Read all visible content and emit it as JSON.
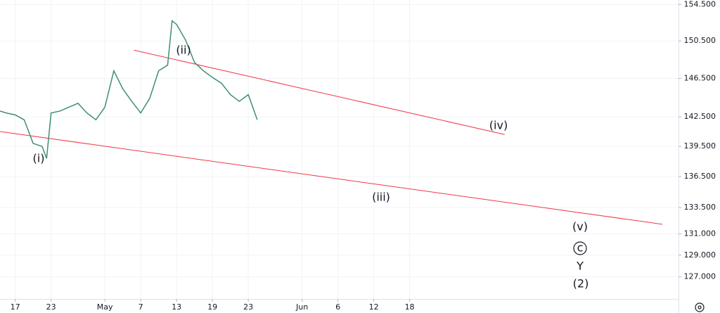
{
  "chart_data": {
    "type": "line",
    "log_scale": true,
    "grid": true,
    "series": [
      {
        "color": "#3f8f6f",
        "x": [
          -1.7,
          -1,
          0,
          1,
          2,
          3,
          3.5,
          4,
          5,
          6,
          7,
          8,
          9,
          10,
          11,
          12,
          13,
          14,
          15,
          16,
          17,
          17.5,
          18,
          19,
          20,
          21,
          22,
          23,
          24,
          25,
          26,
          27
        ],
        "values": [
          143.1,
          142.9,
          142.7,
          142.2,
          139.8,
          139.5,
          138.3,
          142.9,
          143.1,
          143.5,
          143.9,
          142.9,
          142.2,
          143.5,
          147.3,
          145.4,
          144.1,
          142.9,
          144.4,
          147.3,
          147.9,
          152.7,
          152.3,
          150.6,
          148.2,
          147.3,
          146.6,
          146.0,
          144.8,
          144.1,
          144.8,
          142.2
        ]
      }
    ],
    "trendlines": [
      {
        "color": "#f23645",
        "x": [
          13.25,
          54.6
        ],
        "y": [
          149.5,
          140.7
        ]
      },
      {
        "color": "#f23645",
        "x": [
          -1.7,
          72.2
        ],
        "y": [
          141.0,
          131.9
        ]
      }
    ],
    "annotations": [
      "(i)",
      "(ii)",
      "(iii)",
      "(iv)",
      "(v)",
      "c",
      "Y",
      "(2)"
    ],
    "xlim": [
      -1.7,
      74
    ],
    "xticks": [
      {
        "value": 0,
        "label": "17"
      },
      {
        "value": 4,
        "label": "23"
      },
      {
        "value": 10,
        "label": "May"
      },
      {
        "value": 14,
        "label": "7"
      },
      {
        "value": 18,
        "label": "13"
      },
      {
        "value": 22,
        "label": "19"
      },
      {
        "value": 26,
        "label": "23"
      },
      {
        "value": 32,
        "label": "Jun"
      },
      {
        "value": 36,
        "label": "6"
      },
      {
        "value": 40,
        "label": "12"
      },
      {
        "value": 44,
        "label": "18"
      }
    ],
    "ylim": [
      125,
      155
    ],
    "yticks": [
      {
        "value": 154.5,
        "label": "154.500"
      },
      {
        "value": 150.5,
        "label": "150.500"
      },
      {
        "value": 146.5,
        "label": "146.500"
      },
      {
        "value": 142.5,
        "label": "142.500"
      },
      {
        "value": 139.5,
        "label": "139.500"
      },
      {
        "value": 136.5,
        "label": "136.500"
      },
      {
        "value": 133.5,
        "label": "133.500"
      },
      {
        "value": 131,
        "label": "131.000"
      },
      {
        "value": 129,
        "label": "129.000"
      },
      {
        "value": 127,
        "label": "127.000"
      }
    ]
  }
}
